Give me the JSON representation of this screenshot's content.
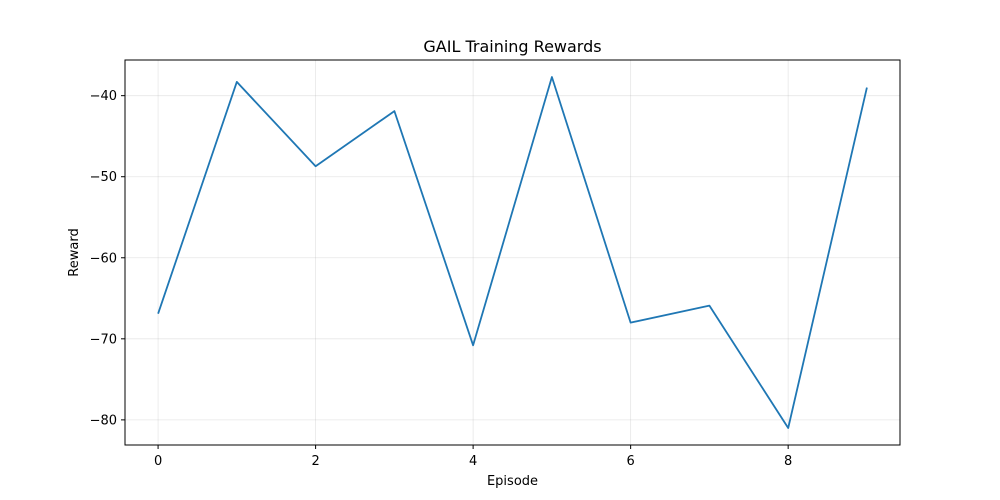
{
  "chart_data": {
    "type": "line",
    "title": "GAIL Training Rewards",
    "xlabel": "Episode",
    "ylabel": "Reward",
    "xlim": [
      -0.42,
      9.42
    ],
    "ylim": [
      -83.1,
      -35.6
    ],
    "xticks": [
      0,
      2,
      4,
      6,
      8
    ],
    "yticks": [
      -80,
      -70,
      -60,
      -50,
      -40
    ],
    "grid": true,
    "series": [
      {
        "color": "#1f77b4",
        "x": [
          0,
          1,
          2,
          3,
          4,
          5,
          6,
          7,
          8,
          9
        ],
        "y": [
          -66.9,
          -38.3,
          -48.7,
          -41.9,
          -70.8,
          -37.7,
          -68.0,
          -65.9,
          -81.0,
          -39.0
        ]
      }
    ]
  }
}
